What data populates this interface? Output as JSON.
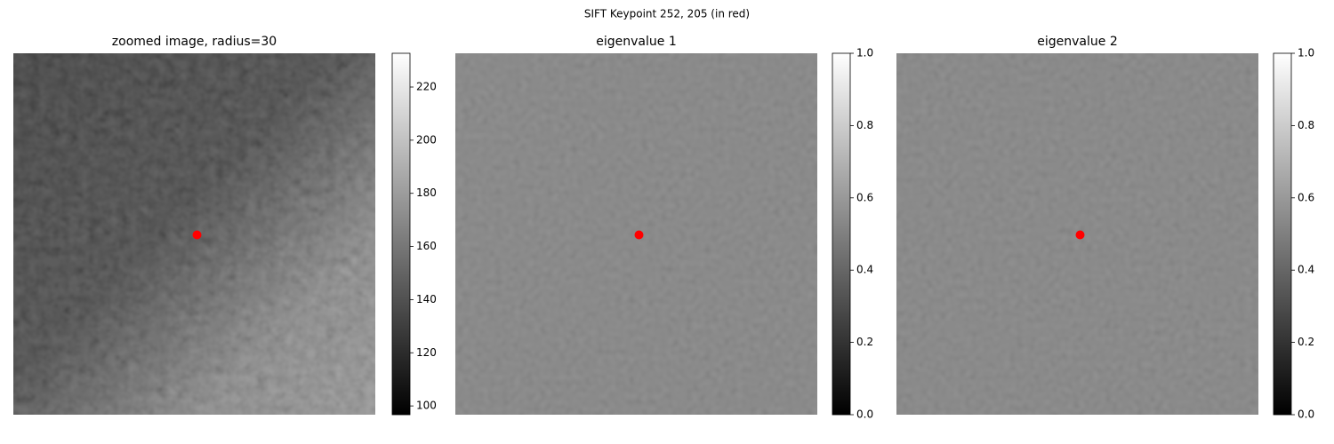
{
  "figure_title": "SIFT Keypoint 252, 205 (in red)",
  "chart_data": [
    {
      "type": "image",
      "title": "zoomed image, radius=30",
      "colormap": "gray",
      "marker_color": "#ff0000",
      "clim": [
        96.7,
        232.7
      ],
      "cticks": [
        100,
        120,
        140,
        160,
        180,
        200,
        220
      ]
    },
    {
      "type": "image",
      "title": "eigenvalue 1",
      "colormap": "gray",
      "marker_color": "#ff0000",
      "clim": [
        0,
        1
      ],
      "cticks": [
        {
          "value": 0,
          "label": "0.0"
        },
        0.2,
        0.4,
        0.6,
        0.8,
        {
          "value": 1,
          "label": "1.0"
        }
      ]
    },
    {
      "type": "image",
      "title": "eigenvalue 2",
      "colormap": "gray",
      "marker_color": "#ff0000",
      "clim": [
        0,
        1
      ],
      "cticks": [
        {
          "value": 0,
          "label": "0.0"
        },
        0.2,
        0.4,
        0.6,
        0.8,
        {
          "value": 1,
          "label": "1.0"
        }
      ]
    }
  ]
}
